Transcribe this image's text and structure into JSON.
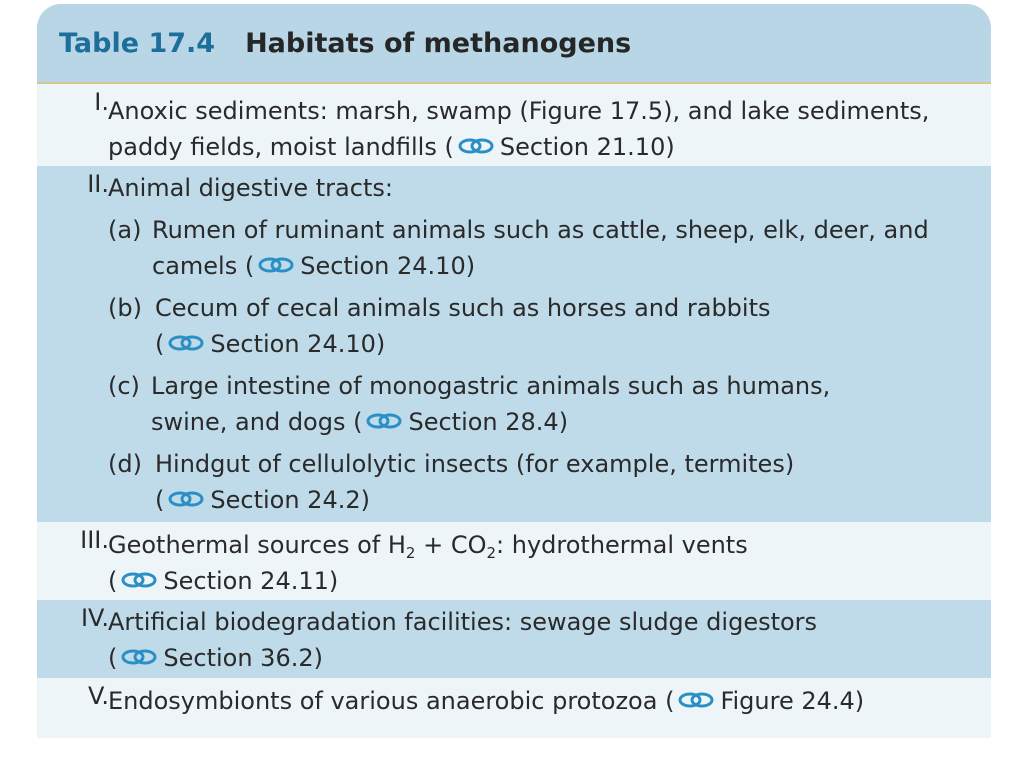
{
  "header": {
    "number": "Table 17.4",
    "title": "Habitats of methanogens"
  },
  "rows": {
    "r1": {
      "num": "I.",
      "line1": "Anoxic sediments: marsh, swamp (Figure 17.5), and lake sediments,",
      "line2_pre": "paddy fields, moist landfills (",
      "line2_ref": "Section 21.10)"
    },
    "r2": {
      "num": "II.",
      "heading": "Animal digestive tracts:",
      "a": {
        "label": "(a)",
        "line1": "Rumen of ruminant animals such as cattle, sheep, elk, deer, and",
        "line2_pre": "camels (",
        "line2_ref": "Section 24.10)"
      },
      "b": {
        "label": "(b)",
        "line1": "Cecum of cecal animals such as horses and rabbits",
        "line2_pre": "(",
        "line2_ref": "Section 24.10)"
      },
      "c": {
        "label": "(c)",
        "line1": "Large intestine of monogastric animals such as humans,",
        "line2_pre": "swine, and dogs (",
        "line2_ref": "Section 28.4)"
      },
      "d": {
        "label": "(d)",
        "line1": "Hindgut of cellulolytic insects (for example, termites)",
        "line2_pre": "(",
        "line2_ref": "Section 24.2)"
      }
    },
    "r3": {
      "num": "III.",
      "line1_pre": "Geothermal sources of H",
      "sub1": "2",
      "line1_mid": " + CO",
      "sub2": "2",
      "line1_post": ": hydrothermal vents",
      "line2_pre": "(",
      "line2_ref": "Section 24.11)"
    },
    "r4": {
      "num": "IV.",
      "line1": "Artificial biodegradation facilities: sewage sludge digestors",
      "line2_pre": "(",
      "line2_ref": "Section 36.2)"
    },
    "r5": {
      "num": "V.",
      "line1_pre": "Endosymbionts of various anaerobic protozoa (",
      "line1_ref": "Figure 24.4)"
    }
  },
  "icons": {
    "cross_ref": "chain-link-icon"
  },
  "colors": {
    "header_bg": "#b8d6e5",
    "title_number": "#1d6f9b",
    "row_shade": "#bfdbe9",
    "row_light": "#eef5f9",
    "link_icon": "#2a8fc4"
  }
}
